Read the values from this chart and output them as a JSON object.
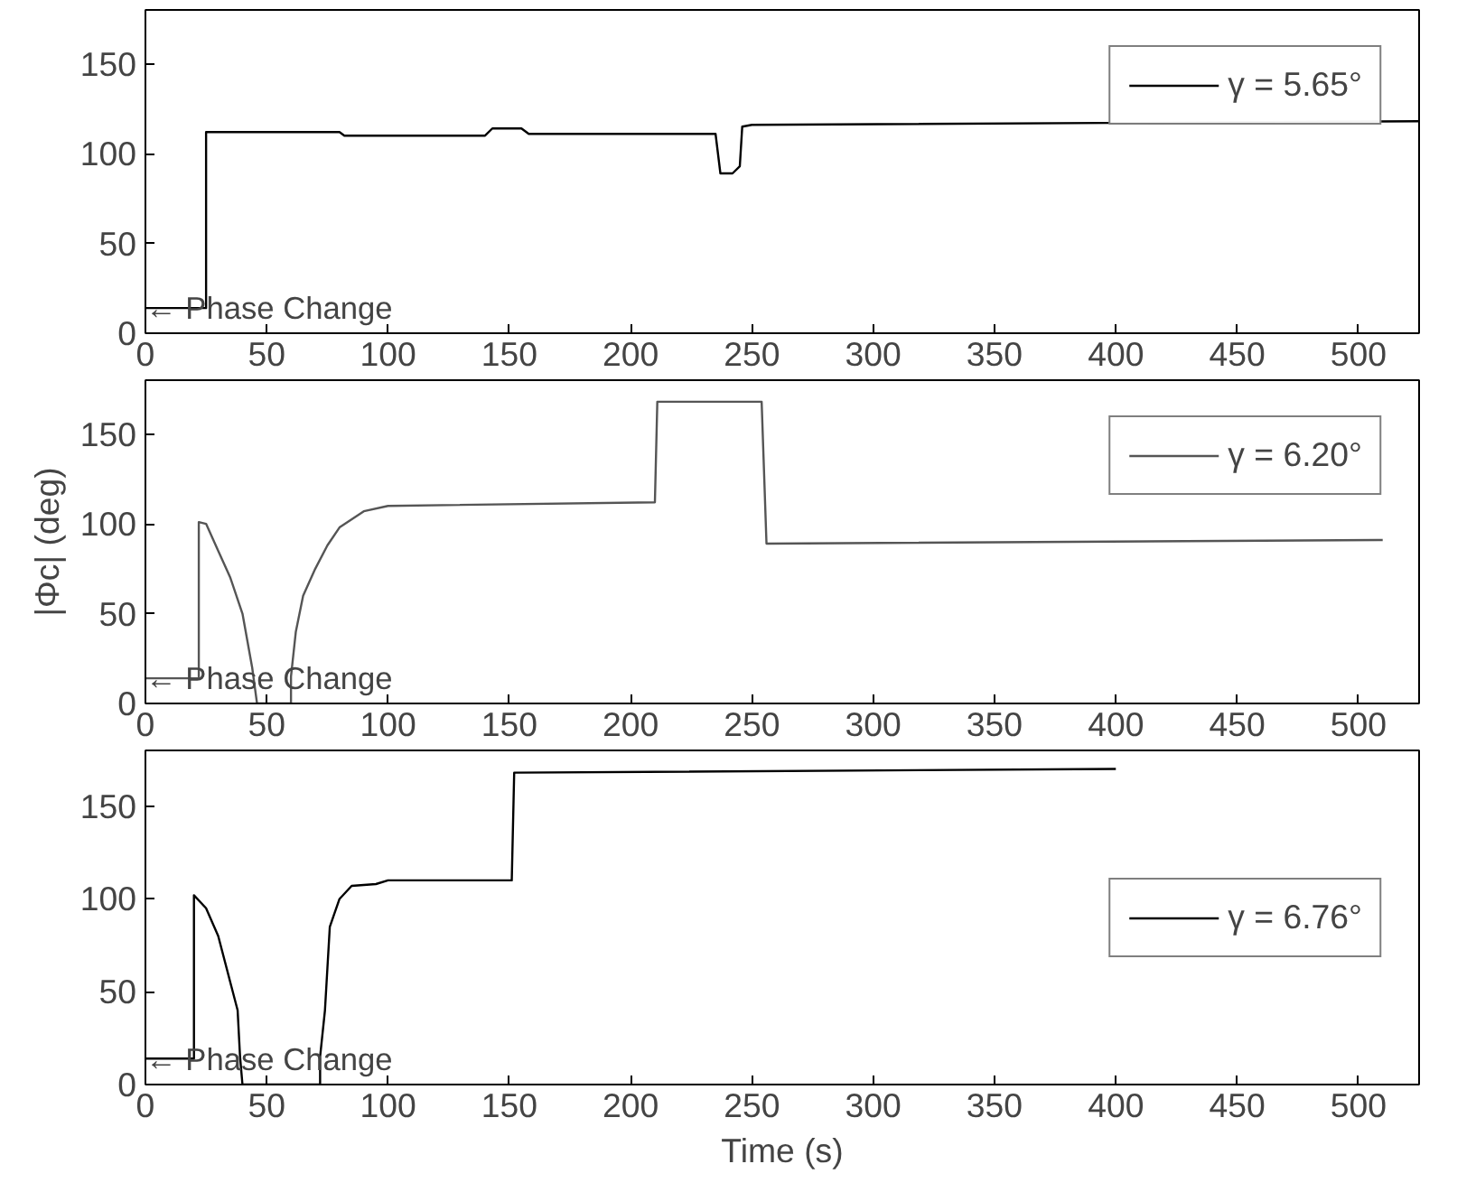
{
  "chart_data": [
    {
      "type": "line",
      "xlim": [
        0,
        525
      ],
      "ylim": [
        0,
        180
      ],
      "xticks": [
        0,
        50,
        100,
        150,
        200,
        250,
        300,
        350,
        400,
        450,
        500
      ],
      "yticks": [
        0,
        50,
        100,
        150
      ],
      "grid": false,
      "legend": "top right",
      "marker": "none",
      "line_style": "solid",
      "annotations": [
        "← Phase Change"
      ],
      "series": [
        {
          "name": "γ = 5.65°",
          "color": "#000000",
          "x": [
            0,
            25,
            25,
            80,
            82,
            140,
            143,
            155,
            158,
            235,
            237,
            242,
            245,
            246,
            250,
            525
          ],
          "values": [
            14,
            14,
            112,
            112,
            110,
            110,
            114,
            114,
            111,
            111,
            89,
            89,
            93,
            115,
            116,
            118
          ]
        }
      ]
    },
    {
      "type": "line",
      "xlim": [
        0,
        525
      ],
      "ylim": [
        0,
        180
      ],
      "xticks": [
        0,
        50,
        100,
        150,
        200,
        250,
        300,
        350,
        400,
        450,
        500
      ],
      "yticks": [
        0,
        50,
        100,
        150
      ],
      "grid": false,
      "legend": "top right",
      "marker": "none",
      "line_style": "solid",
      "ylabel": "|Φc| (deg)",
      "annotations": [
        "← Phase Change"
      ],
      "series": [
        {
          "name": "γ = 6.20°",
          "color": "#555555",
          "x": [
            0,
            22,
            22,
            25,
            30,
            35,
            40,
            44,
            46,
            60,
            60,
            62,
            65,
            70,
            75,
            80,
            90,
            100,
            210,
            211,
            254,
            256,
            510
          ],
          "values": [
            14,
            14,
            101,
            100,
            85,
            70,
            50,
            20,
            0,
            0,
            15,
            40,
            60,
            75,
            88,
            98,
            107,
            110,
            112,
            168,
            168,
            89,
            91
          ]
        }
      ]
    },
    {
      "type": "line",
      "xlim": [
        0,
        525
      ],
      "ylim": [
        0,
        180
      ],
      "xticks": [
        0,
        50,
        100,
        150,
        200,
        250,
        300,
        350,
        400,
        450,
        500
      ],
      "yticks": [
        0,
        50,
        100,
        150
      ],
      "grid": false,
      "legend": "right",
      "marker": "none",
      "line_style": "solid",
      "xlabel": "Time (s)",
      "annotations": [
        "← Phase Change"
      ],
      "series": [
        {
          "name": "γ = 6.76°",
          "color": "#000000",
          "x": [
            0,
            20,
            20,
            25,
            30,
            35,
            38,
            39,
            40,
            72,
            72,
            74,
            76,
            80,
            85,
            95,
            100,
            151,
            152,
            400
          ],
          "values": [
            14,
            14,
            102,
            95,
            80,
            55,
            40,
            15,
            0,
            0,
            15,
            40,
            85,
            100,
            107,
            108,
            110,
            110,
            168,
            170
          ]
        }
      ]
    }
  ]
}
